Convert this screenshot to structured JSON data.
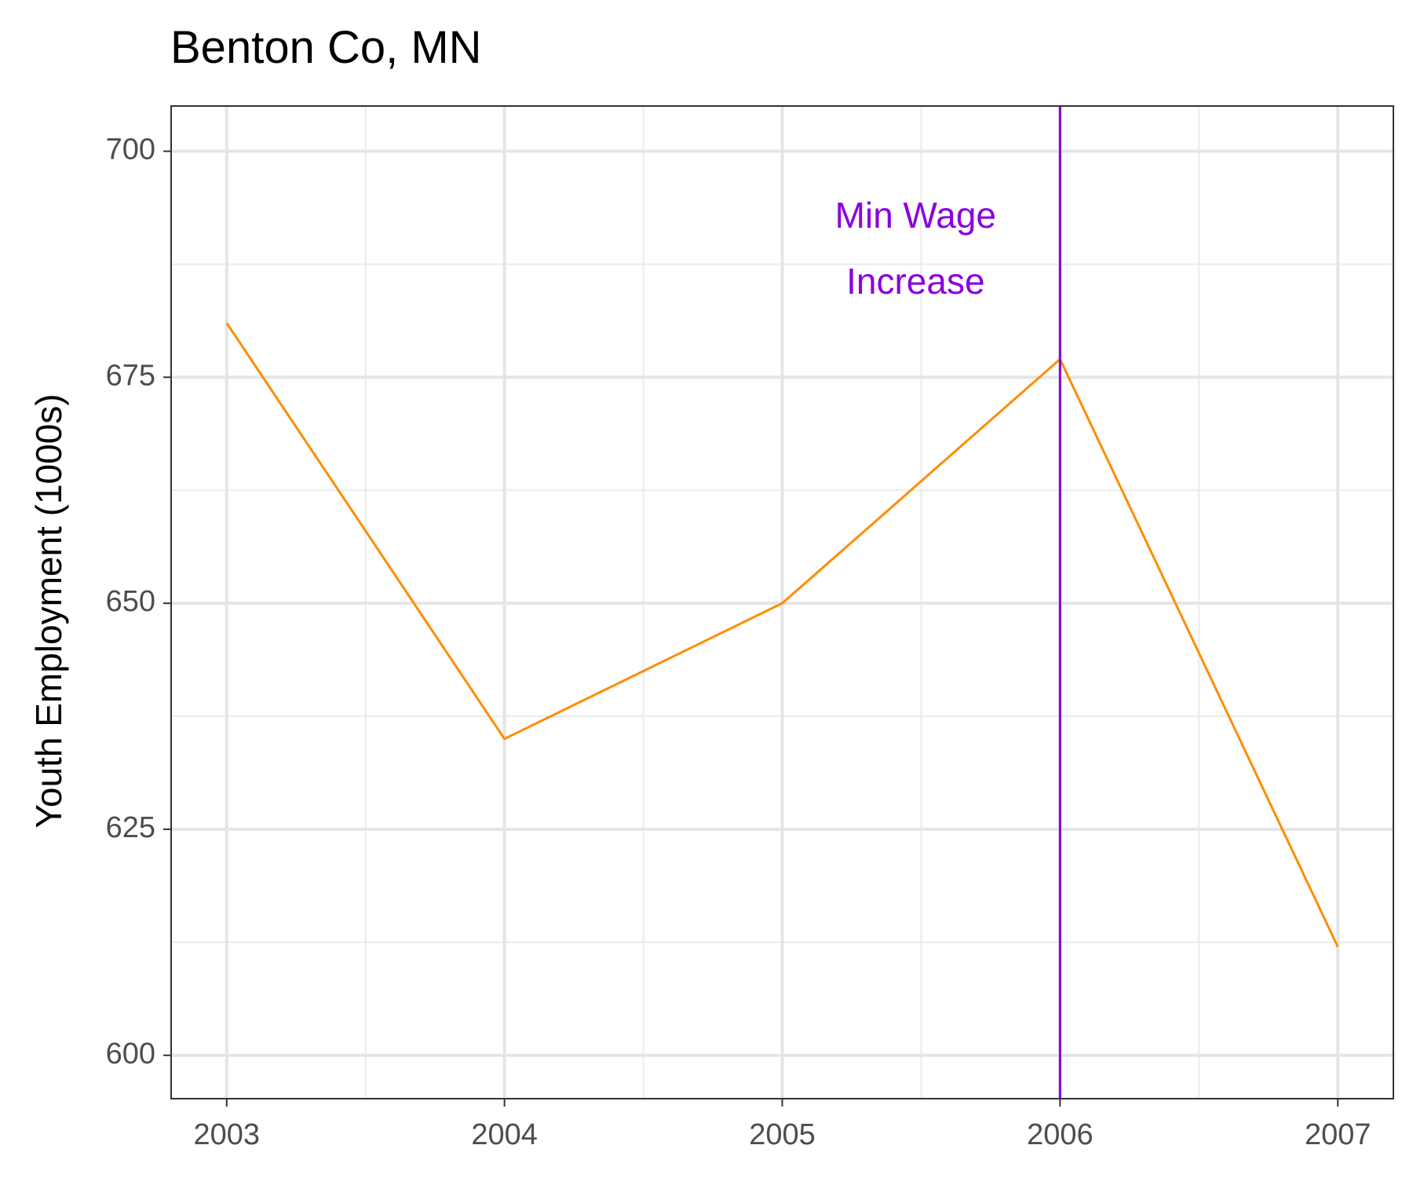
{
  "chart_data": {
    "type": "line",
    "title": "Benton Co, MN",
    "xlabel": "",
    "ylabel": "Youth Employment (1000s)",
    "x": [
      2003,
      2004,
      2005,
      2006,
      2007
    ],
    "xlim": [
      2002.8,
      2007.2
    ],
    "ylim": [
      595.2,
      705
    ],
    "x_ticks": [
      "2003",
      "2004",
      "2005",
      "2006",
      "2007"
    ],
    "y_ticks": [
      "600",
      "625",
      "650",
      "675",
      "700"
    ],
    "grid": true,
    "series": [
      {
        "values": [
          681,
          635,
          650,
          677,
          612
        ],
        "color": "#FF8C00"
      }
    ],
    "annotations": [
      {
        "type": "vline",
        "x": 2006,
        "color": "#8A00E0",
        "label_lines": [
          "Min Wage",
          "Increase"
        ],
        "label_x": 2005.48,
        "label_y": [
          692.6,
          685.3
        ]
      }
    ]
  }
}
